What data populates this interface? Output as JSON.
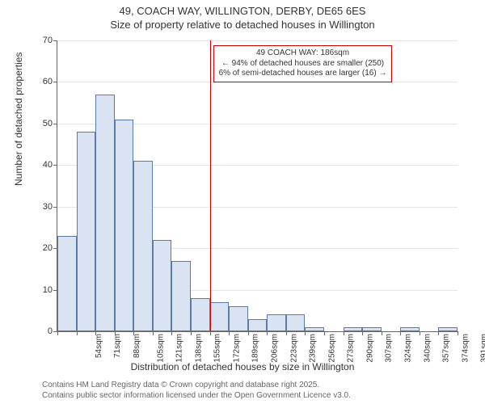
{
  "title_line1": "49, COACH WAY, WILLINGTON, DERBY, DE65 6ES",
  "title_line2": "Size of property relative to detached houses in Willington",
  "y_axis_label": "Number of detached properties",
  "x_axis_label": "Distribution of detached houses by size in Willington",
  "footer_line1": "Contains HM Land Registry data © Crown copyright and database right 2025.",
  "footer_line2": "Contains public sector information licensed under the Open Government Licence v3.0.",
  "chart": {
    "type": "histogram",
    "ylim": [
      0,
      70
    ],
    "ytick_step": 10,
    "background_color": "#ffffff",
    "grid_color": "#999999",
    "axis_color": "#666666",
    "bar_fill": "#d9e3f2",
    "bar_border": "#5b7aa8",
    "marker_color": "#cc0000",
    "bars": [
      {
        "label": "54sqm",
        "value": 23
      },
      {
        "label": "71sqm",
        "value": 48
      },
      {
        "label": "88sqm",
        "value": 57
      },
      {
        "label": "105sqm",
        "value": 51
      },
      {
        "label": "121sqm",
        "value": 41
      },
      {
        "label": "138sqm",
        "value": 22
      },
      {
        "label": "155sqm",
        "value": 17
      },
      {
        "label": "172sqm",
        "value": 8
      },
      {
        "label": "189sqm",
        "value": 7
      },
      {
        "label": "206sqm",
        "value": 6
      },
      {
        "label": "223sqm",
        "value": 3
      },
      {
        "label": "239sqm",
        "value": 4
      },
      {
        "label": "256sqm",
        "value": 4
      },
      {
        "label": "273sqm",
        "value": 1
      },
      {
        "label": "290sqm",
        "value": 0
      },
      {
        "label": "307sqm",
        "value": 1
      },
      {
        "label": "324sqm",
        "value": 1
      },
      {
        "label": "340sqm",
        "value": 0
      },
      {
        "label": "357sqm",
        "value": 1
      },
      {
        "label": "374sqm",
        "value": 0
      },
      {
        "label": "391sqm",
        "value": 1
      }
    ],
    "marker_bar_index": 8,
    "annotation": {
      "line1": "49 COACH WAY: 186sqm",
      "line2": "← 94% of detached houses are smaller (250)",
      "line3": "6% of semi-detached houses are larger (16) →"
    }
  }
}
